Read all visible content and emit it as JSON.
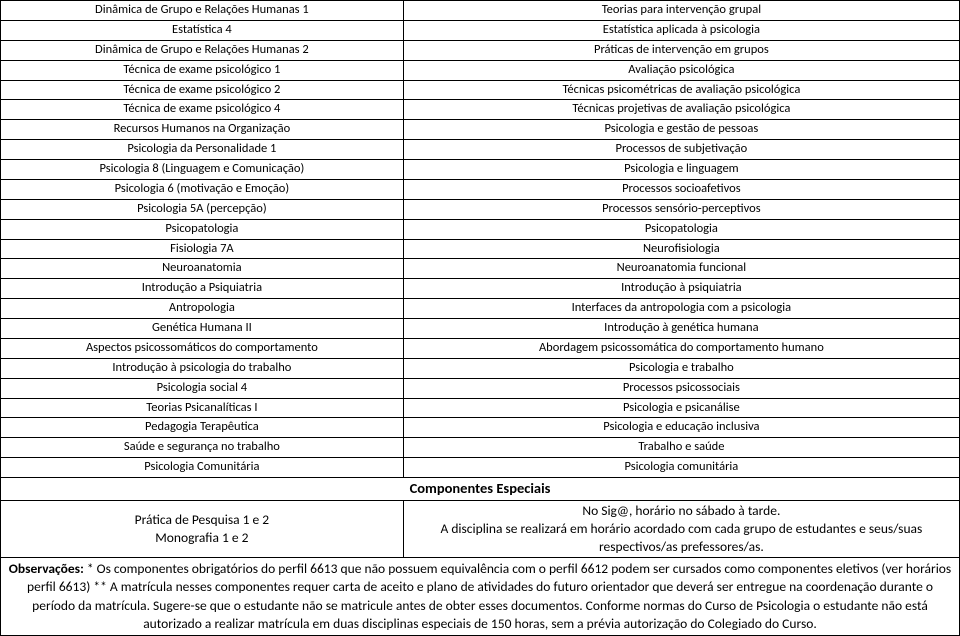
{
  "rows": [
    {
      "left": "Dinâmica de Grupo e Relações Humanas 1",
      "right": "Teorias para intervenção grupal"
    },
    {
      "left": "Estatística 4",
      "right": "Estatística aplicada à psicologia"
    },
    {
      "left": "Dinâmica de Grupo e Relações Humanas 2",
      "right": "Práticas de intervenção em grupos"
    },
    {
      "left": "Técnica de exame psicológico 1",
      "right": "Avaliação psicológica"
    },
    {
      "left": "Técnica de exame psicológico 2",
      "right": "Técnicas psicométricas de avaliação psicológica"
    },
    {
      "left": "Técnica de exame psicológico 4",
      "right": "Técnicas projetivas de avaliação psicológica"
    },
    {
      "left": "Recursos Humanos na Organização",
      "right": "Psicologia e gestão de pessoas"
    },
    {
      "left": "Psicologia da Personalidade 1",
      "right": "Processos de subjetivação"
    },
    {
      "left": "Psicologia 8 (Linguagem e Comunicação)",
      "right": "Psicologia e linguagem"
    },
    {
      "left": "Psicologia 6 (motivação e Emoção)",
      "right": "Processos socioafetivos"
    },
    {
      "left": "Psicologia 5A (percepção)",
      "right": "Processos sensório-perceptivos"
    },
    {
      "left": "Psicopatologia",
      "right": "Psicopatologia"
    },
    {
      "left": "Fisiologia 7A",
      "right": "Neurofisiologia"
    },
    {
      "left": "Neuroanatomia",
      "right": "Neuroanatomia funcional"
    },
    {
      "left": "Introdução a Psiquiatria",
      "right": "Introdução à psiquiatria"
    },
    {
      "left": "Antropologia",
      "right": "Interfaces da antropologia com a psicologia"
    },
    {
      "left": "Genética Humana II",
      "right": "Introdução à genética humana"
    },
    {
      "left": "Aspectos psicossomáticos do comportamento",
      "right": "Abordagem psicossomática do comportamento humano"
    },
    {
      "left": "Introdução à psicologia do trabalho",
      "right": "Psicologia e trabalho"
    },
    {
      "left": "Psicologia social 4",
      "right": "Processos psicossociais"
    },
    {
      "left": "Teorias Psicanalíticas I",
      "right": "Psicologia e psicanálise"
    },
    {
      "left": "Pedagogia Terapêutica",
      "right": "Psicologia e educação inclusiva"
    },
    {
      "left": "Saúde e segurança no trabalho",
      "right": "Trabalho e saúde"
    },
    {
      "left": "Psicologia Comunitária",
      "right": "Psicologia comunitária"
    }
  ],
  "section": {
    "header": "Componentes Especiais",
    "sub_left_1": "Prática de Pesquisa 1 e 2",
    "sub_left_2": "Monografia 1 e 2",
    "sub_right_1": "No Sig@, horário no sábado à tarde.",
    "sub_right_2": "A disciplina se realizará em horário acordado com cada grupo de estudantes e seus/suas respectivos/as prefessores/as."
  },
  "observations": {
    "bold": "Observações:",
    "text": " * Os componentes obrigatórios do perfil 6613 que não possuem equivalência com o perfil 6612 podem ser cursados como componentes eletivos (ver horários perfil 6613) ** A matrícula nesses componentes requer carta de aceito e plano de atividades do futuro orientador que deverá ser entregue na coordenação durante o período da matrícula. Sugere-se que o estudante não se matricule antes de obter esses documentos. Conforme normas do Curso de Psicologia o estudante não está autorizado a realizar matrícula em duas disciplinas especiais de 150 horas, sem a prévia autorização do Colegiado do Curso."
  },
  "colors": {
    "border": "#000000",
    "background": "#ffffff",
    "text": "#000000"
  }
}
